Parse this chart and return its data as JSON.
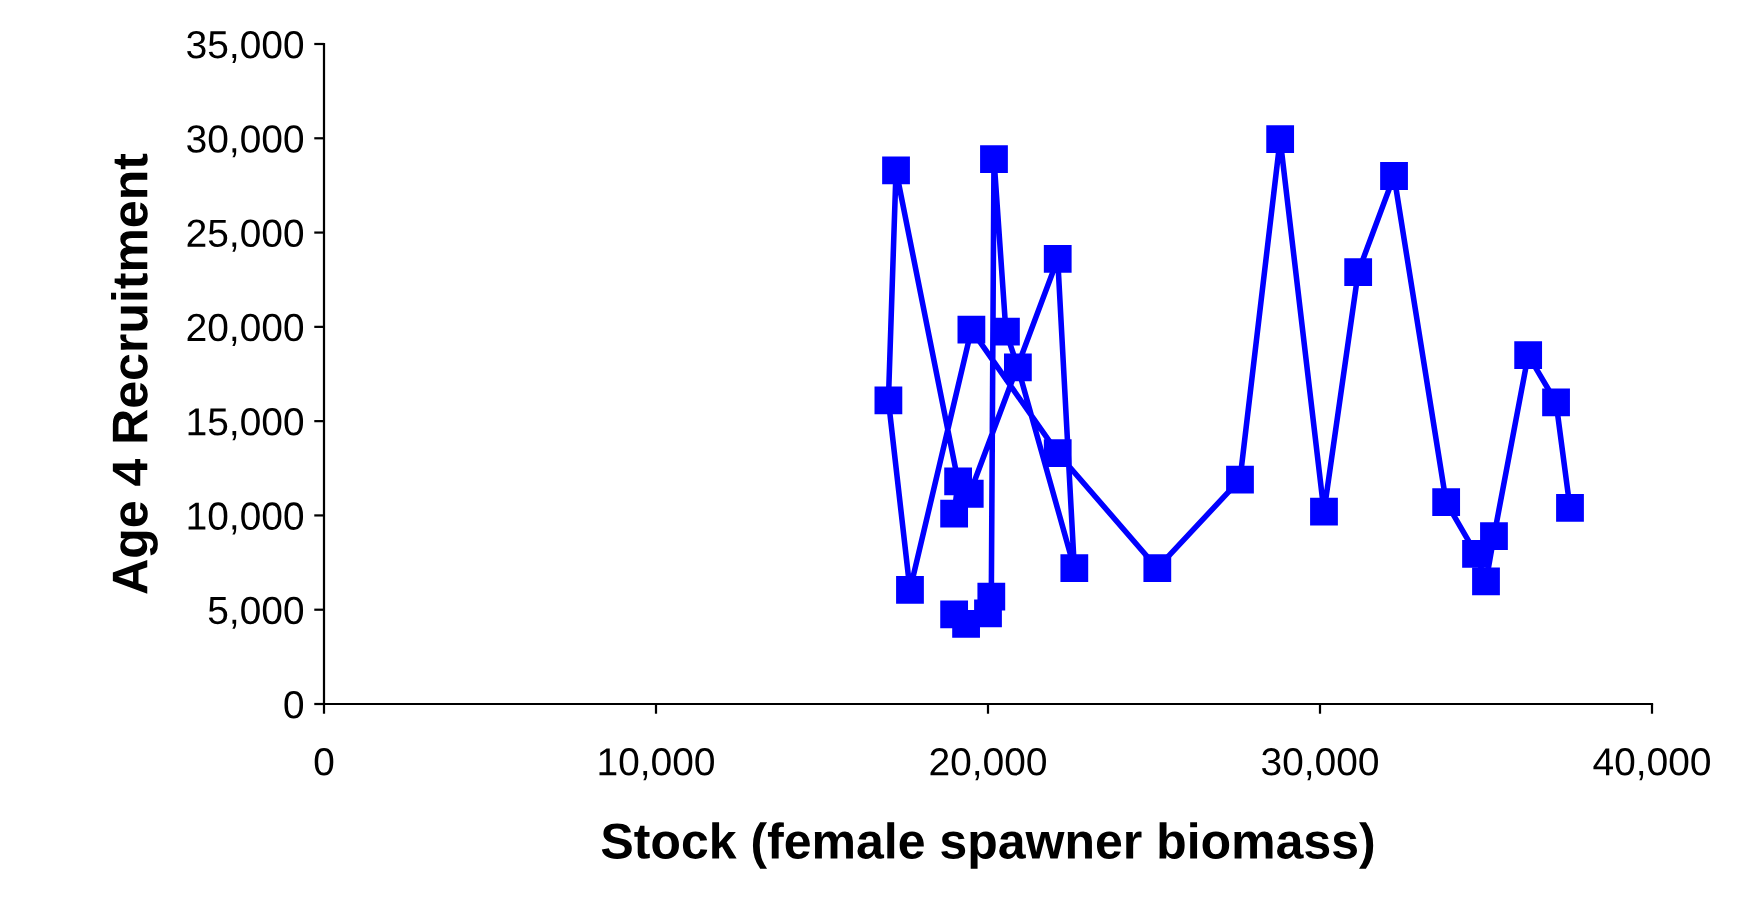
{
  "chart_data": {
    "type": "line",
    "xlabel": "Stock (female spawner biomass)",
    "ylabel": "Age 4 Recruitment",
    "x": [
      18980,
      19340,
      20000,
      20100,
      20180,
      20540,
      20900,
      22600,
      22100,
      19450,
      18980,
      19100,
      17230,
      17000,
      17650,
      19500,
      22100,
      25100,
      27590,
      28800,
      30120,
      31150,
      32230,
      33800,
      34700,
      35000,
      35240,
      36270,
      37110,
      37530
    ],
    "series": [
      {
        "color": "#0000ff",
        "values": [
          4750,
          4250,
          4800,
          5700,
          28900,
          19750,
          17850,
          7200,
          23600,
          11150,
          10100,
          11800,
          28300,
          16100,
          6050,
          19850,
          13300,
          7200,
          11900,
          29950,
          10200,
          22900,
          28000,
          10700,
          7960,
          6500,
          8900,
          18500,
          16000,
          10400
        ]
      }
    ],
    "marker": "square",
    "line_style": "solid",
    "grid": false,
    "legend": false,
    "xlim": [
      0,
      40000
    ],
    "xticks": [
      0,
      {
        "value": 10000,
        "label": "10,000"
      },
      {
        "value": 20000,
        "label": "20,000"
      },
      {
        "value": 30000,
        "label": "30,000"
      },
      {
        "value": 40000,
        "label": "40,000"
      }
    ],
    "ylim": [
      0,
      35000
    ],
    "yticks": [
      0,
      {
        "value": 5000,
        "label": "5,000"
      },
      {
        "value": 10000,
        "label": "10,000"
      },
      {
        "value": 15000,
        "label": "15,000"
      },
      {
        "value": 20000,
        "label": "20,000"
      },
      {
        "value": 25000,
        "label": "25,000"
      },
      {
        "value": 30000,
        "label": "30,000"
      },
      {
        "value": 35000,
        "label": "35,000"
      }
    ]
  }
}
